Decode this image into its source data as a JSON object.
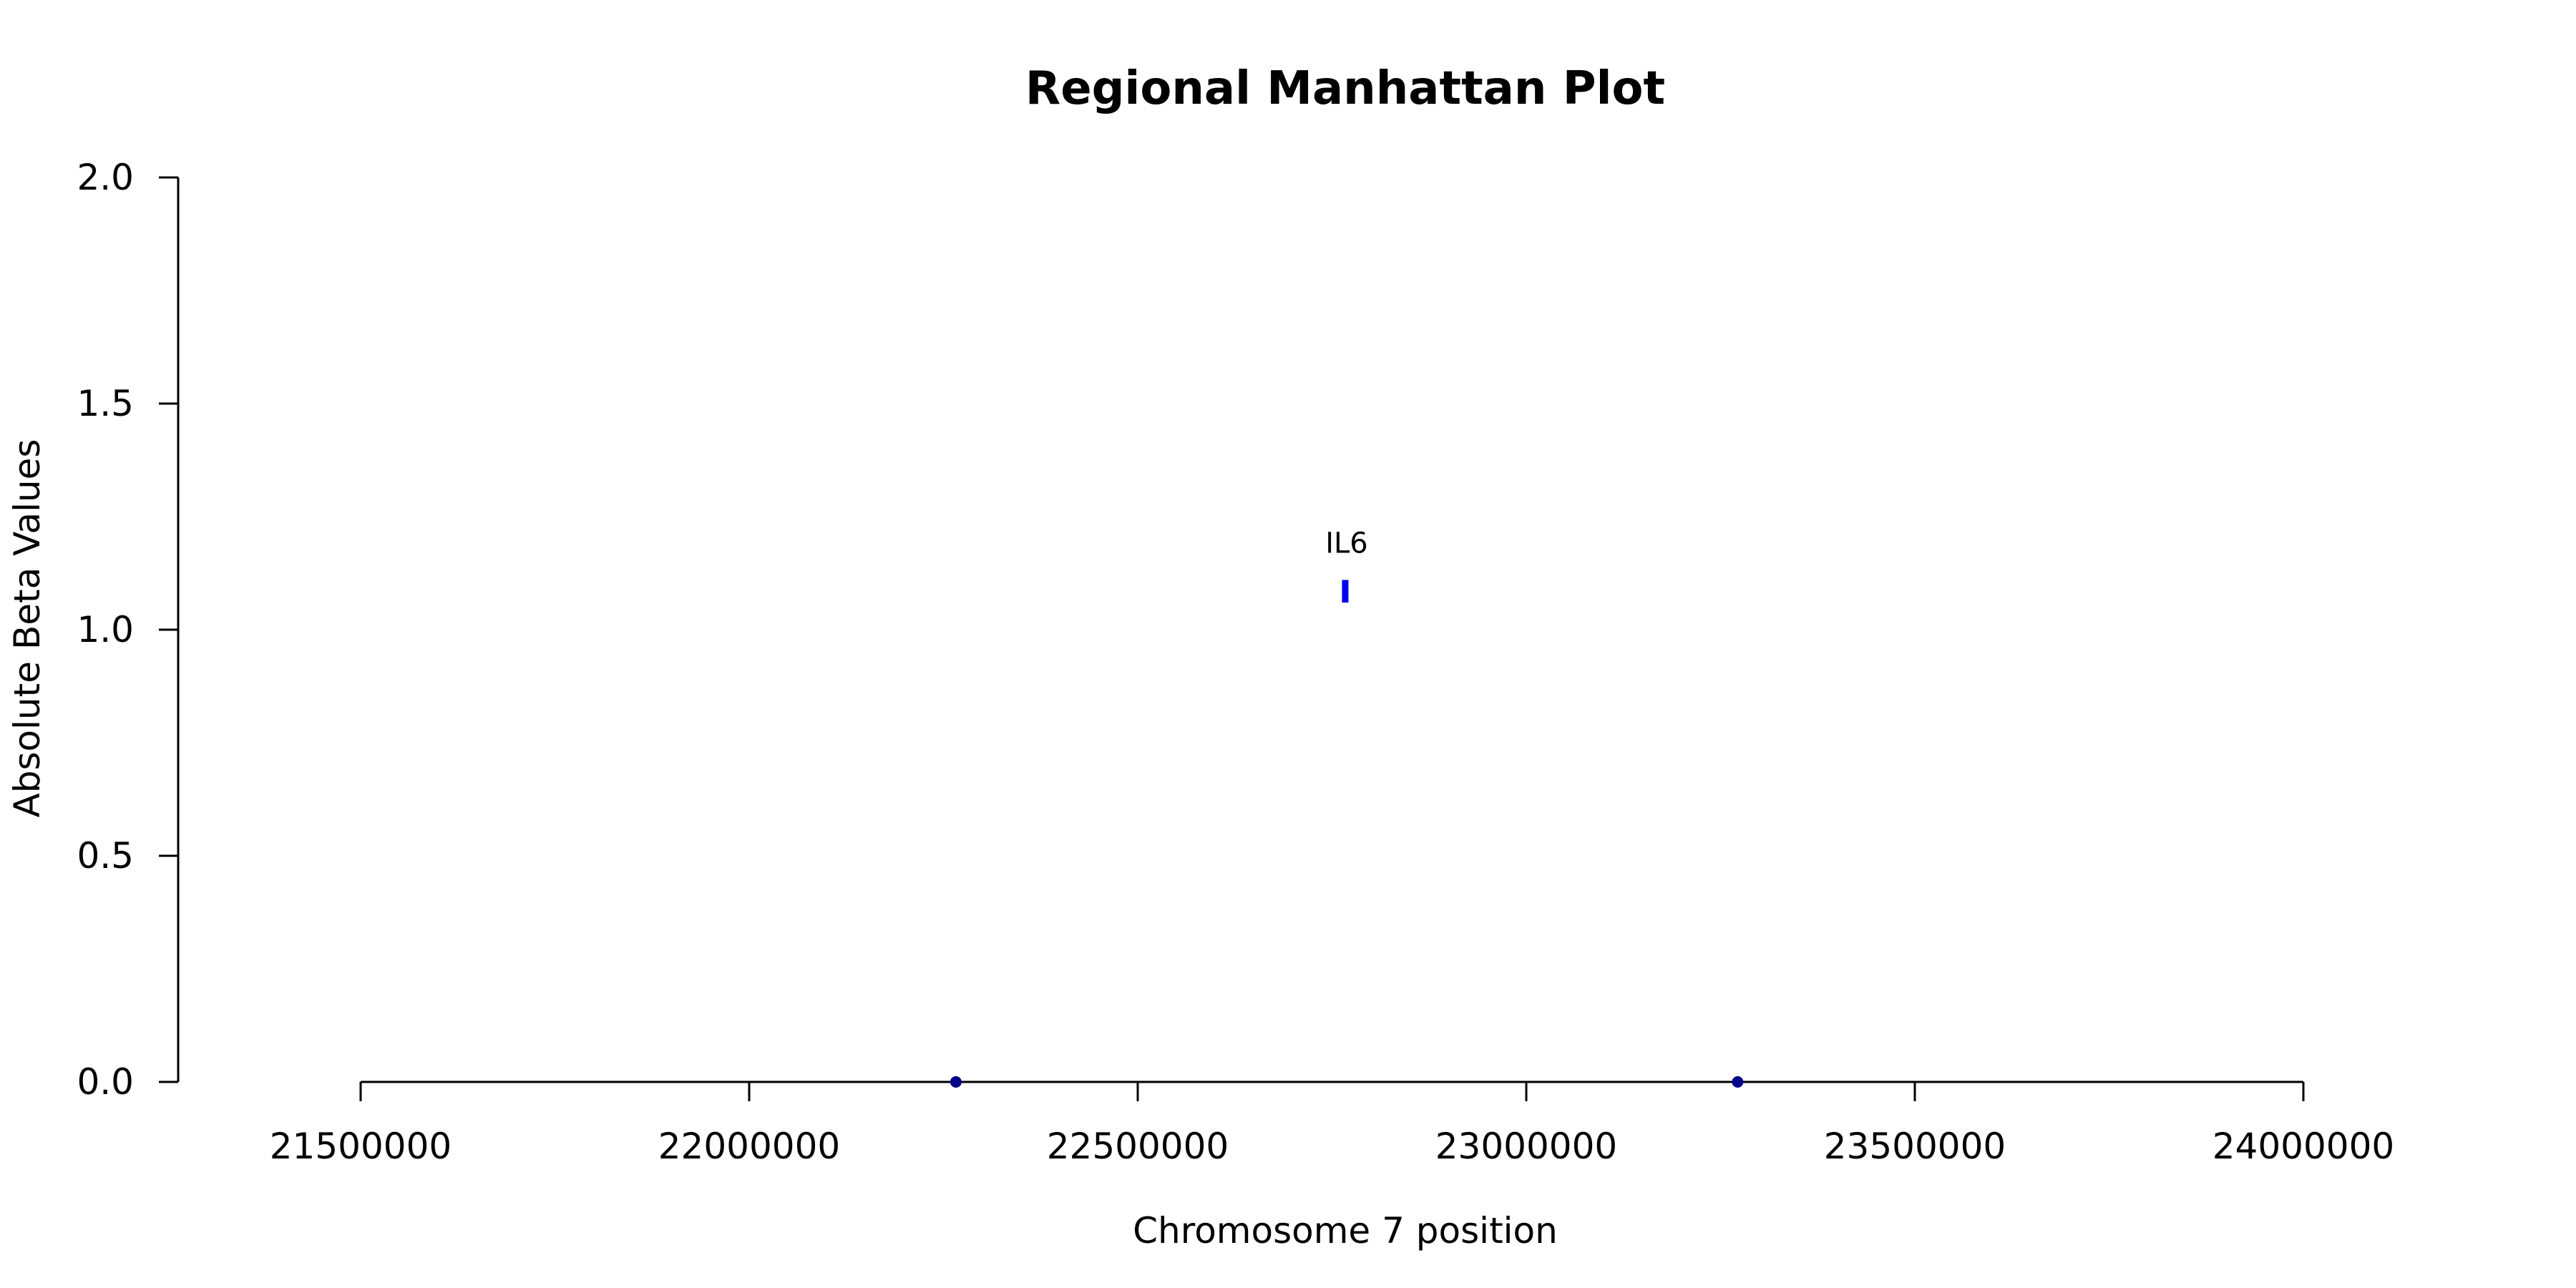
{
  "chart_data": {
    "type": "scatter",
    "title": "Regional Manhattan Plot",
    "xlabel": "Chromosome 7 position",
    "ylabel": "Absolute Beta Values",
    "xlim": [
      21500000,
      24000000
    ],
    "ylim": [
      0,
      2
    ],
    "x_ticks": [
      21500000,
      22000000,
      22500000,
      23000000,
      23500000,
      24000000
    ],
    "x_tick_labels": [
      "21500000",
      "22000000",
      "22500000",
      "23000000",
      "23500000",
      "24000000"
    ],
    "y_ticks": [
      0,
      0.5,
      1,
      1.5,
      2
    ],
    "y_tick_labels": [
      "0.0",
      "0.5",
      "1.0",
      "1.5",
      "2.0"
    ],
    "points": [
      {
        "x": 22266000,
        "y": 0.0,
        "color": "#00008b"
      },
      {
        "x": 23272000,
        "y": 0.0,
        "color": "#00008b"
      }
    ],
    "highlight": [
      {
        "x": 22767000,
        "y_low": 1.06,
        "y_high": 1.11,
        "label": "IL6",
        "color": "#0000ee"
      }
    ],
    "grid": false,
    "legend": "none"
  }
}
